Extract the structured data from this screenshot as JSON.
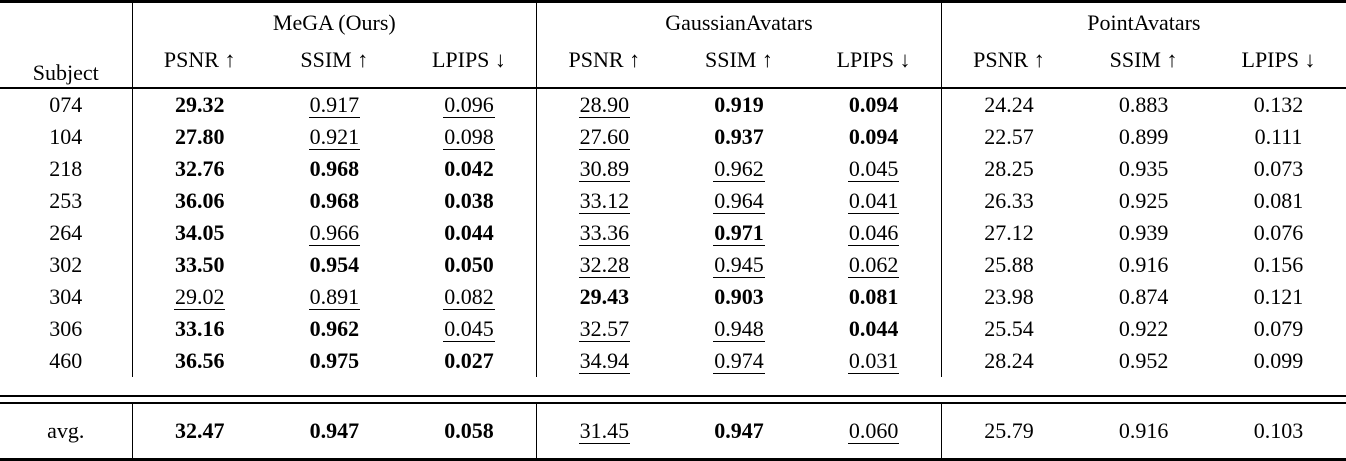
{
  "colors": {
    "background": "#ffffff",
    "text": "#000000",
    "rule": "#000000"
  },
  "table": {
    "subject_header": "Subject",
    "groups": [
      "MeGA (Ours)",
      "GaussianAvatars",
      "PointAvatars"
    ],
    "metrics": [
      "PSNR ↑",
      "SSIM ↑",
      "LPIPS ↓"
    ],
    "rows": [
      {
        "subject": "074",
        "values": [
          {
            "v": "29.32",
            "f": "b"
          },
          {
            "v": "0.917",
            "f": "u"
          },
          {
            "v": "0.096",
            "f": "u"
          },
          {
            "v": "28.90",
            "f": "u"
          },
          {
            "v": "0.919",
            "f": "b"
          },
          {
            "v": "0.094",
            "f": "b"
          },
          {
            "v": "24.24",
            "f": ""
          },
          {
            "v": "0.883",
            "f": ""
          },
          {
            "v": "0.132",
            "f": ""
          }
        ]
      },
      {
        "subject": "104",
        "values": [
          {
            "v": "27.80",
            "f": "b"
          },
          {
            "v": "0.921",
            "f": "u"
          },
          {
            "v": "0.098",
            "f": "u"
          },
          {
            "v": "27.60",
            "f": "u"
          },
          {
            "v": "0.937",
            "f": "b"
          },
          {
            "v": "0.094",
            "f": "b"
          },
          {
            "v": "22.57",
            "f": ""
          },
          {
            "v": "0.899",
            "f": ""
          },
          {
            "v": "0.111",
            "f": ""
          }
        ]
      },
      {
        "subject": "218",
        "values": [
          {
            "v": "32.76",
            "f": "b"
          },
          {
            "v": "0.968",
            "f": "b"
          },
          {
            "v": "0.042",
            "f": "b"
          },
          {
            "v": "30.89",
            "f": "u"
          },
          {
            "v": "0.962",
            "f": "u"
          },
          {
            "v": "0.045",
            "f": "u"
          },
          {
            "v": "28.25",
            "f": ""
          },
          {
            "v": "0.935",
            "f": ""
          },
          {
            "v": "0.073",
            "f": ""
          }
        ]
      },
      {
        "subject": "253",
        "values": [
          {
            "v": "36.06",
            "f": "b"
          },
          {
            "v": "0.968",
            "f": "b"
          },
          {
            "v": "0.038",
            "f": "b"
          },
          {
            "v": "33.12",
            "f": "u"
          },
          {
            "v": "0.964",
            "f": "u"
          },
          {
            "v": "0.041",
            "f": "u"
          },
          {
            "v": "26.33",
            "f": ""
          },
          {
            "v": "0.925",
            "f": ""
          },
          {
            "v": "0.081",
            "f": ""
          }
        ]
      },
      {
        "subject": "264",
        "values": [
          {
            "v": "34.05",
            "f": "b"
          },
          {
            "v": "0.966",
            "f": "u"
          },
          {
            "v": "0.044",
            "f": "b"
          },
          {
            "v": "33.36",
            "f": "u"
          },
          {
            "v": "0.971",
            "f": "bu"
          },
          {
            "v": "0.046",
            "f": "u"
          },
          {
            "v": "27.12",
            "f": ""
          },
          {
            "v": "0.939",
            "f": ""
          },
          {
            "v": "0.076",
            "f": ""
          }
        ]
      },
      {
        "subject": "302",
        "values": [
          {
            "v": "33.50",
            "f": "b"
          },
          {
            "v": "0.954",
            "f": "b"
          },
          {
            "v": "0.050",
            "f": "b"
          },
          {
            "v": "32.28",
            "f": "u"
          },
          {
            "v": "0.945",
            "f": "u"
          },
          {
            "v": "0.062",
            "f": "u"
          },
          {
            "v": "25.88",
            "f": ""
          },
          {
            "v": "0.916",
            "f": ""
          },
          {
            "v": "0.156",
            "f": ""
          }
        ]
      },
      {
        "subject": "304",
        "values": [
          {
            "v": "29.02",
            "f": "u"
          },
          {
            "v": "0.891",
            "f": "u"
          },
          {
            "v": "0.082",
            "f": "u"
          },
          {
            "v": "29.43",
            "f": "b"
          },
          {
            "v": "0.903",
            "f": "b"
          },
          {
            "v": "0.081",
            "f": "b"
          },
          {
            "v": "23.98",
            "f": ""
          },
          {
            "v": "0.874",
            "f": ""
          },
          {
            "v": "0.121",
            "f": ""
          }
        ]
      },
      {
        "subject": "306",
        "values": [
          {
            "v": "33.16",
            "f": "b"
          },
          {
            "v": "0.962",
            "f": "b"
          },
          {
            "v": "0.045",
            "f": "u"
          },
          {
            "v": "32.57",
            "f": "u"
          },
          {
            "v": "0.948",
            "f": "u"
          },
          {
            "v": "0.044",
            "f": "b"
          },
          {
            "v": "25.54",
            "f": ""
          },
          {
            "v": "0.922",
            "f": ""
          },
          {
            "v": "0.079",
            "f": ""
          }
        ]
      },
      {
        "subject": "460",
        "values": [
          {
            "v": "36.56",
            "f": "b"
          },
          {
            "v": "0.975",
            "f": "b"
          },
          {
            "v": "0.027",
            "f": "b"
          },
          {
            "v": "34.94",
            "f": "u"
          },
          {
            "v": "0.974",
            "f": "u"
          },
          {
            "v": "0.031",
            "f": "u"
          },
          {
            "v": "28.24",
            "f": ""
          },
          {
            "v": "0.952",
            "f": ""
          },
          {
            "v": "0.099",
            "f": ""
          }
        ]
      }
    ],
    "avg_row": {
      "subject": "avg.",
      "values": [
        {
          "v": "32.47",
          "f": "b"
        },
        {
          "v": "0.947",
          "f": "b"
        },
        {
          "v": "0.058",
          "f": "b"
        },
        {
          "v": "31.45",
          "f": "u"
        },
        {
          "v": "0.947",
          "f": "b"
        },
        {
          "v": "0.060",
          "f": "u"
        },
        {
          "v": "25.79",
          "f": ""
        },
        {
          "v": "0.916",
          "f": ""
        },
        {
          "v": "0.103",
          "f": ""
        }
      ]
    }
  }
}
